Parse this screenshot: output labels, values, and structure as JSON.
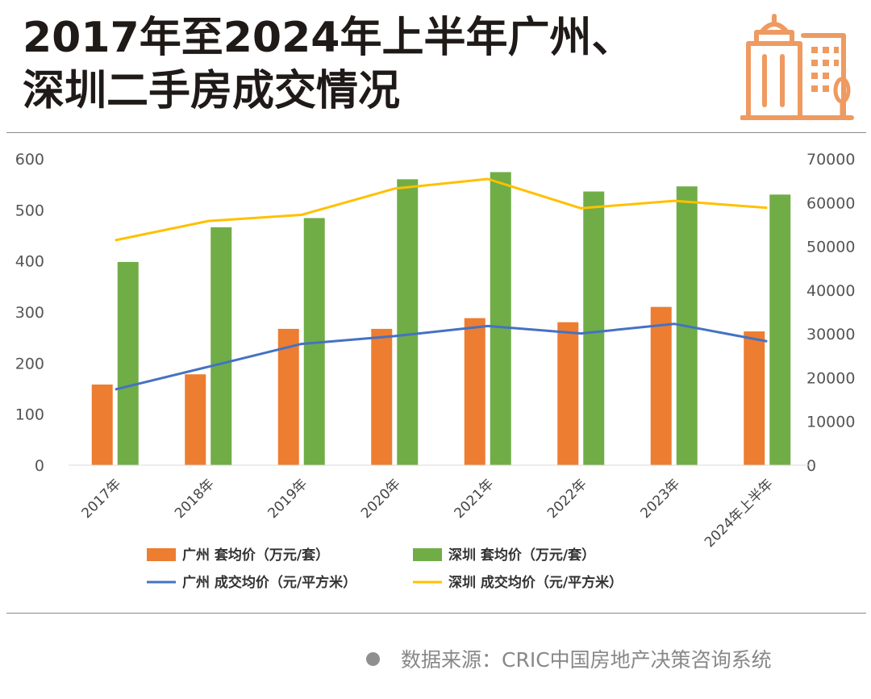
{
  "title": {
    "line1": "2017年至2024年上半年广州、",
    "line2": "深圳二手房成交情况"
  },
  "source": {
    "text": "数据来源：CRIC中国房地产决策咨询系统"
  },
  "colors": {
    "gz_bar": "#ED7D31",
    "sz_bar": "#70AD47",
    "gz_line": "#4472C4",
    "sz_line": "#FFC000",
    "logo": "#EE9A60"
  },
  "chart_data": {
    "type": "bar",
    "categories": [
      "2017年",
      "2018年",
      "2019年",
      "2020年",
      "2021年",
      "2022年",
      "2023年",
      "2024年上半年"
    ],
    "series": [
      {
        "name": "广州 套均价（万元/套）",
        "kind": "bar",
        "axis": "left",
        "values": [
          158,
          178,
          267,
          267,
          288,
          280,
          310,
          262
        ]
      },
      {
        "name": "深圳 套均价（万元/套）",
        "kind": "bar",
        "axis": "left",
        "values": [
          398,
          466,
          484,
          560,
          574,
          536,
          546,
          530
        ]
      },
      {
        "name": "广州 成交均价（元/平方米）",
        "kind": "line",
        "axis": "right",
        "values": [
          17300,
          22500,
          27700,
          29500,
          31800,
          30100,
          32300,
          28300
        ]
      },
      {
        "name": "深圳 成交均价（元/平方米）",
        "kind": "line",
        "axis": "right",
        "values": [
          51400,
          55800,
          57200,
          63200,
          65400,
          58700,
          60400,
          58800
        ]
      }
    ],
    "y_left": {
      "ticks": [
        "600",
        "500",
        "400",
        "300",
        "200",
        "100",
        "0"
      ],
      "min": 0,
      "max": 600
    },
    "y_right": {
      "ticks": [
        "70000",
        "60000",
        "50000",
        "40000",
        "30000",
        "20000",
        "10000",
        "0"
      ],
      "min": 0,
      "max": 70000
    },
    "grid": false,
    "legend_position": "bottom"
  }
}
